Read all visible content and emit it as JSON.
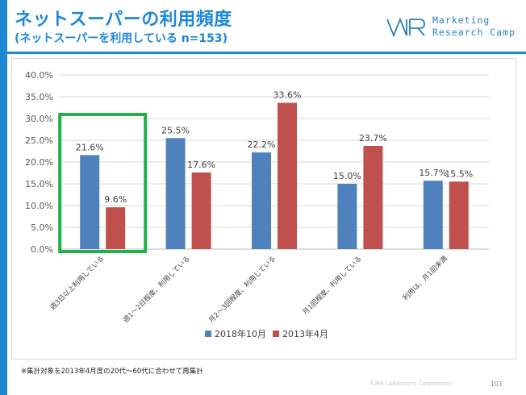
{
  "header": {
    "title": "ネットスーパーの利用頻度",
    "subtitle": "(ネットスーパーを利用している n=153)"
  },
  "logo": {
    "mark_name": "mr-logo-icon",
    "line1": "Marketing",
    "line2": "Research Camp"
  },
  "colors": {
    "accent": "#1e88d6",
    "series_2018": "#4f81bd",
    "series_2013": "#c0504d",
    "highlight": "#1db34a"
  },
  "chart_data": {
    "type": "bar",
    "categories": [
      "週3日以上利用している",
      "週1〜2日程度、利用している",
      "月2〜3回程度、利用している",
      "月1回程度、利用している",
      "利用は、月1回未満"
    ],
    "series": [
      {
        "name": "2018年10月",
        "values": [
          21.6,
          25.5,
          22.2,
          15.0,
          15.7
        ],
        "labels": [
          "21.6%",
          "25.5%",
          "22.2%",
          "15.0%",
          "15.7%"
        ]
      },
      {
        "name": "2013年4月",
        "values": [
          9.6,
          17.6,
          33.6,
          23.7,
          15.5
        ],
        "labels": [
          "9.6%",
          "17.6%",
          "33.6%",
          "23.7%",
          "15.5%"
        ]
      }
    ],
    "yticks": [
      "0.0%",
      "5.0%",
      "10.0%",
      "15.0%",
      "20.0%",
      "25.0%",
      "30.0%",
      "35.0%",
      "40.0%"
    ],
    "ylim": [
      0,
      40
    ],
    "grid": true,
    "legend_position": "bottom",
    "highlighted_category": 0
  },
  "footer": {
    "footnote": "※集計対象を2013年4月度の20代〜60代に合わせて再集計",
    "copyright": "©MR Laboratory Corporation",
    "page": "103"
  }
}
